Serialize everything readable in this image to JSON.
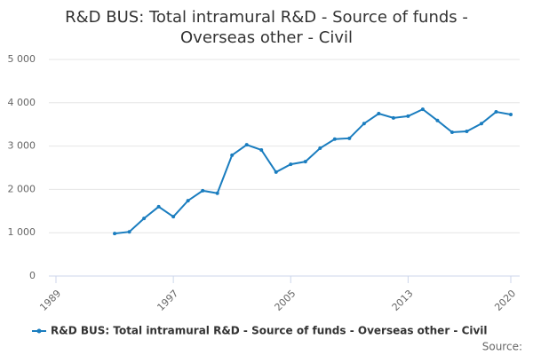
{
  "chart_data": {
    "type": "line",
    "title": "R&D BUS: Total intramural R&D - Source of funds - Overseas other - Civil",
    "x": [
      1993,
      1994,
      1995,
      1996,
      1997,
      1998,
      1999,
      2000,
      2001,
      2002,
      2003,
      2004,
      2005,
      2006,
      2007,
      2008,
      2009,
      2010,
      2011,
      2012,
      2013,
      2014,
      2015,
      2016,
      2017,
      2018,
      2019,
      2020
    ],
    "series": [
      {
        "name": "R&D BUS: Total intramural R&D - Source of funds - Overseas other - Civil",
        "color": "#1a7dbf",
        "values": [
          980,
          1020,
          1330,
          1600,
          1370,
          1740,
          1970,
          1910,
          2790,
          3030,
          2910,
          2400,
          2580,
          2640,
          2950,
          3160,
          3180,
          3520,
          3750,
          3650,
          3690,
          3850,
          3590,
          3320,
          3340,
          3520,
          3790,
          3730
        ]
      }
    ],
    "xlim": [
      1989,
      2020
    ],
    "xticks": [
      1989,
      1997,
      2005,
      2013,
      2020
    ],
    "ylim": [
      0,
      5000
    ],
    "yticks": [
      0,
      {
        "value": 1000,
        "label": "1 000"
      },
      {
        "value": 2000,
        "label": "2 000"
      },
      {
        "value": 3000,
        "label": "3 000"
      },
      {
        "value": 4000,
        "label": "4 000"
      },
      {
        "value": 5000,
        "label": "5 000"
      }
    ],
    "grid": true,
    "legend": "bottom",
    "source": "Source:"
  }
}
